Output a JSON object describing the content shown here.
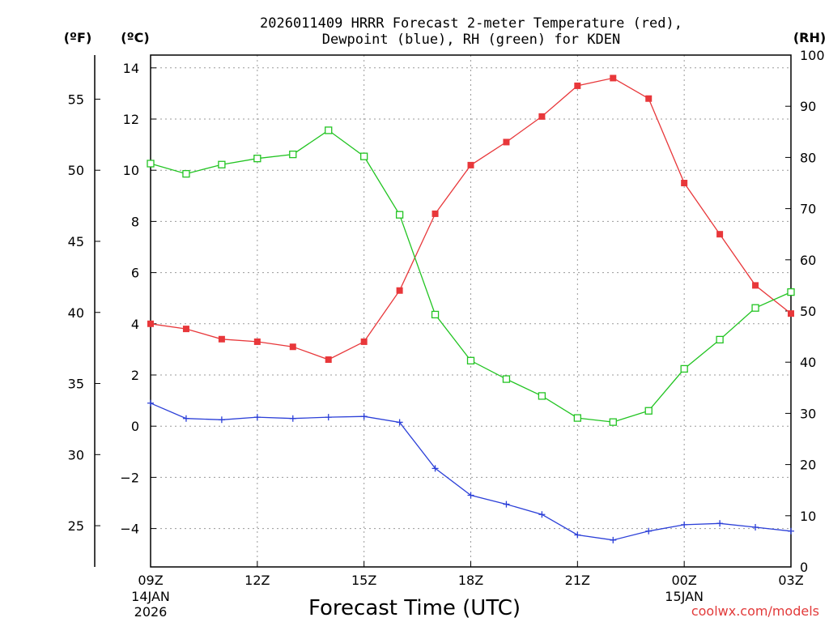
{
  "chart_data": {
    "type": "line",
    "title_lines": [
      "2026011409 HRRR Forecast 2-meter Temperature (red),",
      "Dewpoint (blue), RH (green) for KDEN"
    ],
    "xlabel": "Forecast Time (UTC)",
    "credit": "coolwx.com/models",
    "unit_labels": {
      "fahrenheit": "(ºF)",
      "celsius": "(ºC)",
      "rh": "(RH)"
    },
    "x_hours": [
      0,
      1,
      2,
      3,
      4,
      5,
      6,
      7,
      8,
      9,
      10,
      11,
      12,
      13,
      14,
      15,
      16,
      17,
      18
    ],
    "x_tick_hours": [
      0,
      3,
      6,
      9,
      12,
      15,
      18
    ],
    "x_tick_labels": [
      "09Z",
      "12Z",
      "15Z",
      "18Z",
      "21Z",
      "00Z",
      "03Z"
    ],
    "x_sublabels": [
      {
        "hour": 0,
        "lines": [
          "14JAN",
          "2026"
        ]
      },
      {
        "hour": 15,
        "lines": [
          "15JAN"
        ]
      }
    ],
    "celsius_axis": {
      "range": [
        -5.5,
        14.5
      ],
      "ticks": [
        14,
        12,
        10,
        8,
        6,
        4,
        2,
        0,
        -2,
        -4
      ]
    },
    "celsius_tick_labels": [
      "14",
      "12",
      "10",
      "8",
      "6",
      "4",
      "2",
      "0",
      "−2",
      "−4"
    ],
    "fahrenheit_ticks": [
      55,
      50,
      45,
      40,
      35,
      30,
      25
    ],
    "fahrenheit_tick_labels": [
      "55",
      "50",
      "45",
      "40",
      "35",
      "30",
      "25"
    ],
    "rh_axis": {
      "range": [
        0,
        100
      ],
      "ticks": [
        100,
        90,
        80,
        70,
        60,
        50,
        40,
        30,
        20,
        10,
        0
      ]
    },
    "rh_tick_labels": [
      "100",
      "90",
      "80",
      "70",
      "60",
      "50",
      "40",
      "30",
      "20",
      "10",
      "0"
    ],
    "series": [
      {
        "name": "2-meter Temperature",
        "unit": "C",
        "axis": "celsius",
        "color": "#e8373a",
        "marker": "filled-square",
        "values": [
          4.0,
          3.8,
          3.4,
          3.3,
          3.1,
          2.6,
          3.3,
          5.3,
          8.3,
          10.2,
          11.1,
          12.1,
          13.3,
          13.6,
          12.8,
          9.5,
          7.5,
          5.5,
          4.4
        ]
      },
      {
        "name": "Dewpoint",
        "unit": "C",
        "axis": "celsius",
        "color": "#2b3fd8",
        "marker": "plus",
        "values": [
          0.9,
          0.3,
          0.25,
          0.35,
          0.3,
          0.35,
          0.38,
          0.15,
          -1.65,
          -2.7,
          -3.05,
          -3.45,
          -4.25,
          -4.45,
          -4.1,
          -3.85,
          -3.8,
          -3.95,
          -4.1
        ]
      },
      {
        "name": "RH",
        "unit": "%",
        "axis": "rh",
        "color": "#22c422",
        "marker": "open-square",
        "values": [
          78.8,
          76.8,
          78.6,
          79.8,
          80.6,
          85.3,
          80.2,
          68.8,
          49.3,
          40.3,
          36.7,
          33.4,
          29.1,
          28.3,
          30.5,
          38.7,
          44.4,
          50.6,
          53.7
        ]
      }
    ]
  }
}
